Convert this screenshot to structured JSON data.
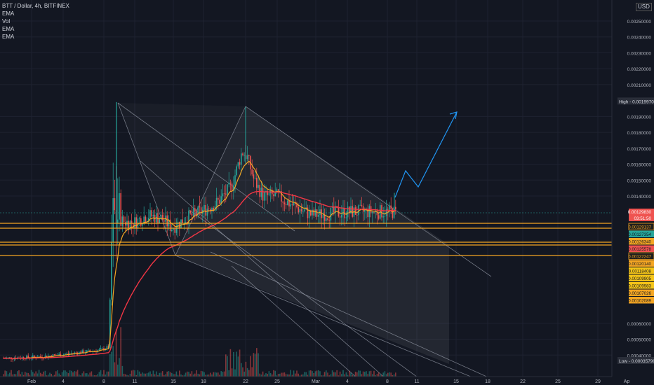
{
  "header": {
    "symbol": "BTT / Dollar, 4h, BITFINEX",
    "indicators": [
      "EMA",
      "Vol",
      "EMA",
      "EMA"
    ],
    "currency": "USD"
  },
  "chart_data": {
    "type": "candlestick",
    "title": "BTT / Dollar, 4h, BITFINEX",
    "x_ticks": [
      "Feb",
      "4",
      "8",
      "11",
      "15",
      "18",
      "22",
      "25",
      "Mar",
      "4",
      "8",
      "11",
      "15",
      "18",
      "22",
      "25",
      "29",
      "Ap"
    ],
    "y_ticks": [
      "0.00040000",
      "0.00050000",
      "0.00060000",
      "0.00140000",
      "0.00150000",
      "0.00160000",
      "0.00170000",
      "0.00180000",
      "0.00190000",
      "0.00210000",
      "0.00220000",
      "0.00230000",
      "0.00240000",
      "0.00250000"
    ],
    "ylim": [
      0.00034,
      0.00263
    ],
    "high_label": "High",
    "high_value": "0.00199700",
    "low_label": "Low",
    "low_value": "0.00035790",
    "current_price": "0.00129830",
    "countdown": "03:51:50",
    "right_labels": [
      {
        "value": "0.00129137",
        "color": "#1e1e1e",
        "border": "#f5a623"
      },
      {
        "value": "0.00127354",
        "color": "#26a69a"
      },
      {
        "value": "0.00126340",
        "color": "#f5a623"
      },
      {
        "value": "0.00125578",
        "color": "#ef5350"
      },
      {
        "value": "0.00122247",
        "color": "#1e1e1e",
        "border": "#f5a623"
      },
      {
        "value": "0.00120140",
        "color": "#f5a623"
      },
      {
        "value": "0.00118408",
        "color": "#f5c518"
      },
      {
        "value": "0.00109905",
        "color": "#f5c518"
      },
      {
        "value": "0.00109983",
        "color": "#f5c518"
      },
      {
        "value": "0.00107026",
        "color": "#f5a623"
      },
      {
        "value": "0.00102089",
        "color": "#f5a623"
      }
    ],
    "horizontal_levels": [
      0.00129137,
      0.00127354,
      0.0012634,
      0.00125578,
      0.00122247
    ],
    "colors": {
      "up": "#26a69a",
      "down": "#ef5350",
      "ema_fast": "#f5a623",
      "ema_slow": "#f23645",
      "projection": "#2196f3",
      "level": "#f5a623"
    },
    "grid": true
  }
}
